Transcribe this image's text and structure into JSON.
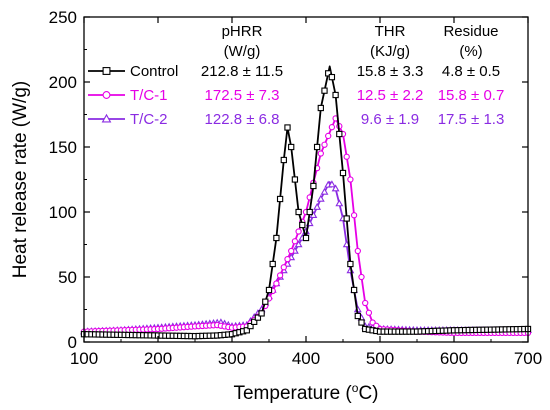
{
  "chart_data": {
    "type": "line",
    "title": "",
    "xlabel": "Temperature (°C)",
    "xlabel_parts": {
      "main": "Temperature (",
      "sup": "o",
      "unit": "C)"
    },
    "ylabel": "Heat release rate (W/g)",
    "xlim": [
      100,
      700
    ],
    "ylim": [
      0,
      250
    ],
    "xticks": [
      100,
      200,
      300,
      400,
      500,
      600,
      700
    ],
    "yticks": [
      0,
      50,
      100,
      150,
      200,
      250
    ],
    "grid": false,
    "legend_placement": "top-left",
    "table_headers": [
      {
        "line1": "pHRR",
        "line2": "(W/g)"
      },
      {
        "line1": "THR",
        "line2": "(KJ/g)"
      },
      {
        "line1": "Residue",
        "line2": "(%)"
      }
    ],
    "series": [
      {
        "name": "Control",
        "color": "#000000",
        "marker": "square",
        "stats": {
          "phrr": "212.8 ± 11.5",
          "thr": "15.8 ± 3.3",
          "residue": "4.8 ± 0.5"
        },
        "points": [
          [
            100,
            6
          ],
          [
            150,
            5.5
          ],
          [
            200,
            5
          ],
          [
            250,
            4.5
          ],
          [
            280,
            5
          ],
          [
            300,
            6
          ],
          [
            320,
            9
          ],
          [
            340,
            22
          ],
          [
            350,
            40
          ],
          [
            360,
            80
          ],
          [
            370,
            140
          ],
          [
            375,
            165
          ],
          [
            380,
            150
          ],
          [
            390,
            100
          ],
          [
            400,
            80
          ],
          [
            410,
            120
          ],
          [
            420,
            180
          ],
          [
            432,
            212
          ],
          [
            440,
            190
          ],
          [
            450,
            130
          ],
          [
            460,
            60
          ],
          [
            470,
            20
          ],
          [
            480,
            10
          ],
          [
            500,
            8
          ],
          [
            550,
            8
          ],
          [
            600,
            9
          ],
          [
            650,
            9.5
          ],
          [
            700,
            10
          ]
        ]
      },
      {
        "name": "T/C-1",
        "color": "#e600e6",
        "marker": "circle",
        "stats": {
          "phrr": "172.5 ± 7.3",
          "thr": "12.5 ± 2.2",
          "residue": "15.8 ± 0.7"
        },
        "points": [
          [
            100,
            8
          ],
          [
            150,
            9
          ],
          [
            200,
            10
          ],
          [
            250,
            12
          ],
          [
            280,
            13
          ],
          [
            300,
            11
          ],
          [
            320,
            12
          ],
          [
            340,
            22
          ],
          [
            360,
            45
          ],
          [
            380,
            70
          ],
          [
            400,
            100
          ],
          [
            420,
            145
          ],
          [
            440,
            172
          ],
          [
            450,
            160
          ],
          [
            460,
            125
          ],
          [
            470,
            70
          ],
          [
            480,
            30
          ],
          [
            490,
            15
          ],
          [
            500,
            10
          ],
          [
            550,
            8
          ],
          [
            600,
            7
          ],
          [
            650,
            7
          ],
          [
            700,
            7
          ]
        ]
      },
      {
        "name": "T/C-2",
        "color": "#8a2be2",
        "marker": "triangle",
        "stats": {
          "phrr": "122.8 ± 6.8",
          "thr": "9.6 ± 1.9",
          "residue": "17.5 ± 1.3"
        },
        "points": [
          [
            100,
            8
          ],
          [
            150,
            9
          ],
          [
            200,
            11
          ],
          [
            250,
            13
          ],
          [
            285,
            15
          ],
          [
            300,
            12
          ],
          [
            320,
            13
          ],
          [
            340,
            25
          ],
          [
            360,
            45
          ],
          [
            380,
            65
          ],
          [
            400,
            85
          ],
          [
            420,
            110
          ],
          [
            432,
            123
          ],
          [
            440,
            118
          ],
          [
            450,
            95
          ],
          [
            460,
            55
          ],
          [
            470,
            25
          ],
          [
            480,
            12
          ],
          [
            500,
            10
          ],
          [
            550,
            9
          ],
          [
            600,
            9
          ],
          [
            650,
            9
          ],
          [
            700,
            9
          ]
        ]
      }
    ]
  }
}
